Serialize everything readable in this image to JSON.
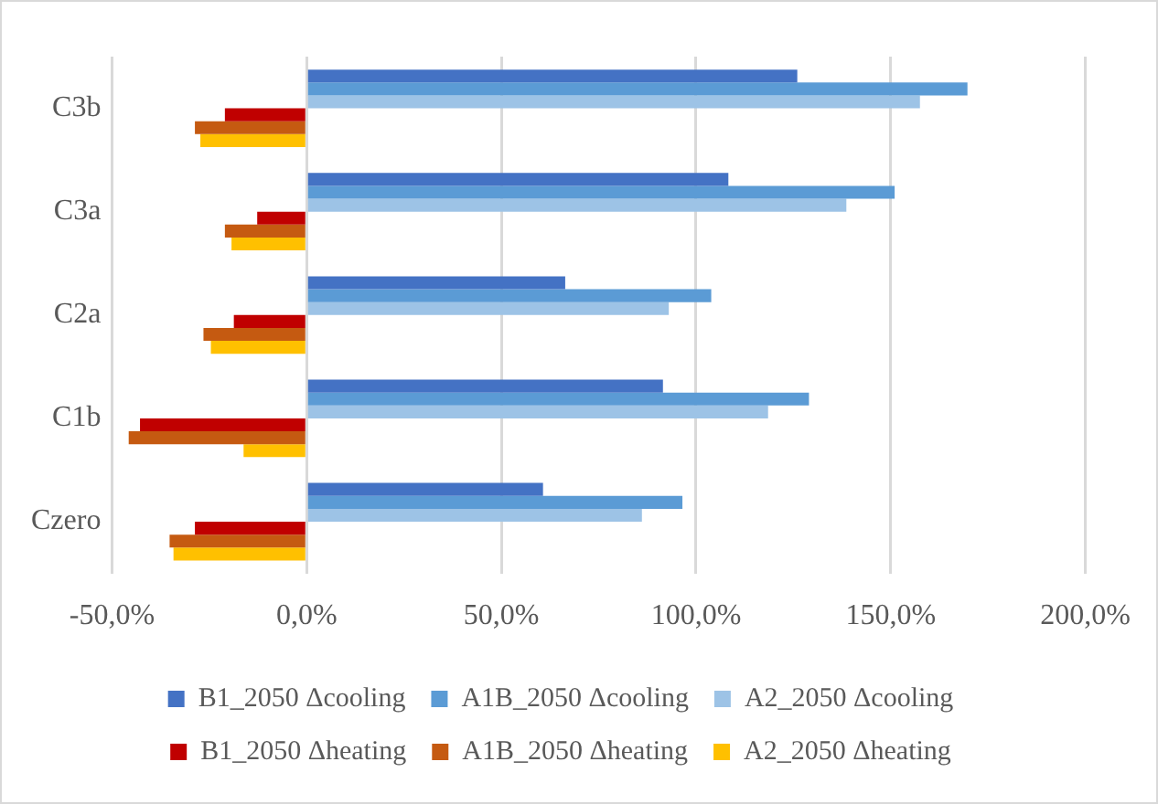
{
  "chart_data": {
    "type": "bar",
    "orientation": "horizontal",
    "categories": [
      "C3b",
      "C3a",
      "C2a",
      "C1b",
      "Czero"
    ],
    "series": [
      {
        "name": "B1_2050 Δcooling",
        "color": "#4472c4",
        "values": [
          126,
          108.3,
          66.4,
          91.5,
          60.7
        ]
      },
      {
        "name": "A1B_2050 Δcooling",
        "color": "#5b9bd5",
        "values": [
          169.7,
          151,
          103.9,
          129,
          96.5
        ]
      },
      {
        "name": "A2_2050 Δcooling",
        "color": "#9dc3e6",
        "values": [
          157.5,
          138.6,
          93,
          118.5,
          86.1
        ]
      },
      {
        "name": "B1_2050 Δheating",
        "color": "#c00000",
        "values": [
          -21,
          -12.7,
          -18.7,
          -42.8,
          -28.7
        ]
      },
      {
        "name": "A1B_2050 Δheating",
        "color": "#c55a11",
        "values": [
          -28.7,
          -21,
          -26.5,
          -45.7,
          -35.2
        ]
      },
      {
        "name": "A2_2050 Δheating",
        "color": "#ffc000",
        "values": [
          -27.3,
          -19.3,
          -24.6,
          -16.2,
          -34.2
        ]
      }
    ],
    "xlim": [
      -50,
      200
    ],
    "xticks": [
      {
        "value": -50,
        "label": "-50,0%"
      },
      {
        "value": 0,
        "label": "0,0%"
      },
      {
        "value": 50,
        "label": "50,0%"
      },
      {
        "value": 100,
        "label": "100,0%"
      },
      {
        "value": 150,
        "label": "150,0%"
      },
      {
        "value": 200,
        "label": "200,0%"
      }
    ],
    "grid": "x",
    "legend": "bottom"
  }
}
